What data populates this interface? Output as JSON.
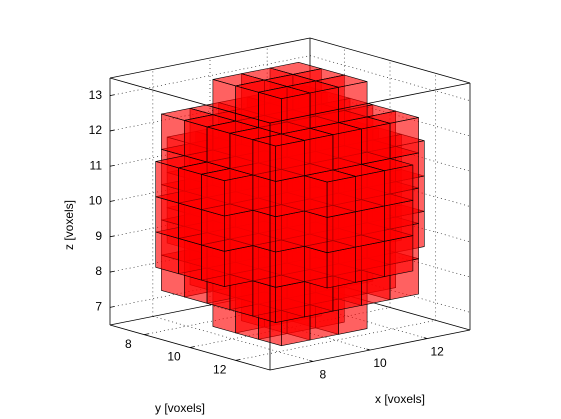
{
  "chart_data": {
    "type": "voxel",
    "xlabel": "x [voxels]",
    "ylabel": "y [voxels]",
    "zlabel": "z [voxels]",
    "xlim": [
      6.5,
      13.5
    ],
    "ylim": [
      6.5,
      13.5
    ],
    "zlim": [
      6.5,
      13.5
    ],
    "xticks": [
      8,
      10,
      12
    ],
    "yticks": [
      8,
      10,
      12
    ],
    "zticks": [
      7,
      8,
      9,
      10,
      11,
      12,
      13
    ],
    "grid": true,
    "color": "#ff0000",
    "layers": [
      {
        "z": 7,
        "rows": [
          [
            9,
            9,
            11
          ],
          [
            10,
            9,
            11
          ],
          [
            11,
            9,
            11
          ]
        ]
      },
      {
        "z": 8,
        "rows": [
          [
            8,
            8,
            12
          ],
          [
            9,
            8,
            12
          ],
          [
            10,
            8,
            12
          ],
          [
            11,
            8,
            12
          ],
          [
            12,
            8,
            12
          ]
        ]
      },
      {
        "z": 9,
        "rows": [
          [
            7,
            9,
            11
          ],
          [
            8,
            8,
            12
          ],
          [
            9,
            7,
            13
          ],
          [
            10,
            7,
            13
          ],
          [
            11,
            7,
            13
          ],
          [
            12,
            8,
            12
          ],
          [
            13,
            9,
            11
          ]
        ]
      },
      {
        "z": 10,
        "rows": [
          [
            7,
            9,
            11
          ],
          [
            8,
            8,
            12
          ],
          [
            9,
            7,
            13
          ],
          [
            10,
            7,
            13
          ],
          [
            11,
            7,
            13
          ],
          [
            12,
            8,
            12
          ],
          [
            13,
            9,
            11
          ]
        ]
      },
      {
        "z": 11,
        "rows": [
          [
            7,
            9,
            11
          ],
          [
            8,
            8,
            12
          ],
          [
            9,
            7,
            13
          ],
          [
            10,
            7,
            13
          ],
          [
            11,
            7,
            13
          ],
          [
            12,
            8,
            12
          ],
          [
            13,
            9,
            11
          ]
        ]
      },
      {
        "z": 12,
        "rows": [
          [
            8,
            8,
            12
          ],
          [
            9,
            8,
            12
          ],
          [
            10,
            8,
            12
          ],
          [
            11,
            8,
            12
          ],
          [
            12,
            8,
            12
          ]
        ]
      },
      {
        "z": 13,
        "rows": [
          [
            9,
            9,
            11
          ],
          [
            10,
            9,
            11
          ],
          [
            11,
            9,
            11
          ]
        ]
      }
    ]
  }
}
